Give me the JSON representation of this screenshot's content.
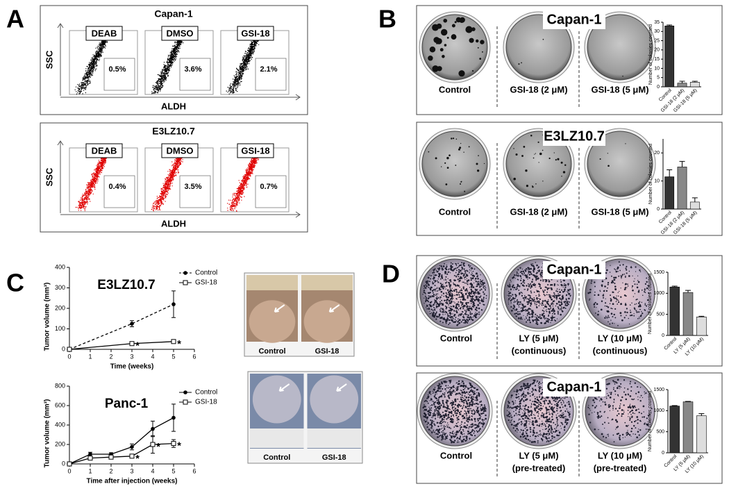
{
  "panel_a": {
    "letter": "A",
    "plots": [
      {
        "title": "Capan-1",
        "ylabel": "SSC",
        "xlabel": "ALDH",
        "color": "#000000",
        "gates": [
          {
            "label": "DEAB",
            "percent": "0.5%"
          },
          {
            "label": "DMSO",
            "percent": "3.6%"
          },
          {
            "label": "GSI-18",
            "percent": "2.1%"
          }
        ]
      },
      {
        "title": "E3LZ10.7",
        "ylabel": "SSC",
        "xlabel": "ALDH",
        "color": "#e00000",
        "gates": [
          {
            "label": "DEAB",
            "percent": "0.4%"
          },
          {
            "label": "DMSO",
            "percent": "3.5%"
          },
          {
            "label": "GSI-18",
            "percent": "0.7%"
          }
        ]
      }
    ]
  },
  "panel_b": {
    "letter": "B",
    "rows": [
      {
        "title": "Capan-1",
        "plates": [
          "Control",
          "GSI-18 (2 μM)",
          "GSI-18 (5 μM)"
        ]
      },
      {
        "title": "E3LZ10.7",
        "plates": [
          "Control",
          "GSI-18 (2 μM)",
          "GSI-18 (5 μM)"
        ]
      }
    ]
  },
  "panel_c": {
    "letter": "C",
    "photo_labels": [
      [
        "Control",
        "GSI-18"
      ],
      [
        "Control",
        "GSI-18"
      ]
    ]
  },
  "panel_d": {
    "letter": "D",
    "rows": [
      {
        "title": "Capan-1",
        "plates": [
          [
            "Control"
          ],
          [
            "LY (5 μM)",
            "(continuous)"
          ],
          [
            "LY (10 μM)",
            "(continuous)"
          ]
        ]
      },
      {
        "title": "Capan-1",
        "plates": [
          [
            "Control"
          ],
          [
            "LY (5 μM)",
            "(pre-treated)"
          ],
          [
            "LY (10 μM)",
            "(pre-treated)"
          ]
        ]
      }
    ]
  },
  "chart_data": [
    {
      "type": "bar",
      "ylabel": "Number of colonies counted",
      "categories": [
        "Control",
        "GSI-18 (2 μM)",
        "GSI-18 (5 μM)"
      ],
      "values": [
        33,
        2,
        2.5
      ],
      "errors": [
        0.5,
        1,
        0.5
      ],
      "colors": [
        "#333333",
        "#888888",
        "#dddddd"
      ],
      "ylim": [
        0,
        35
      ],
      "yticks": [
        0,
        5,
        10,
        15,
        20,
        25,
        30,
        35
      ]
    },
    {
      "type": "bar",
      "ylabel": "Number of colonies counted",
      "categories": [
        "Control",
        "GSI-18 (2 μM)",
        "GSI-18 (5 μM)"
      ],
      "values": [
        11.5,
        15,
        2.5
      ],
      "errors": [
        2.5,
        2,
        1.5
      ],
      "colors": [
        "#333333",
        "#888888",
        "#dddddd"
      ],
      "ylim": [
        0,
        25
      ],
      "yticks": [
        0,
        10,
        20
      ]
    },
    {
      "type": "line",
      "annotation": "E3LZ10.7",
      "xlabel": "Time (weeks)",
      "ylabel": "Tumor volume (mm³)",
      "x": [
        0,
        3,
        5
      ],
      "xlim": [
        0,
        6
      ],
      "xticks": [
        0,
        1,
        2,
        3,
        4,
        5,
        6
      ],
      "ylim": [
        0,
        400
      ],
      "yticks": [
        0,
        100,
        200,
        300,
        400
      ],
      "series": [
        {
          "name": "Control",
          "color": "#000000",
          "marker": "circle",
          "dashed": true,
          "values": [
            0,
            125,
            220
          ],
          "errors": [
            null,
            15,
            65
          ],
          "significance": [
            null,
            null,
            null
          ]
        },
        {
          "name": "GSI-18",
          "color": "#000000",
          "marker": "square",
          "dashed": false,
          "values": [
            0,
            28,
            38
          ],
          "errors": [
            null,
            4,
            8
          ],
          "significance": [
            null,
            "*",
            "*"
          ]
        }
      ]
    },
    {
      "type": "line",
      "annotation": "Panc-1",
      "xlabel": "Time after injection (weeks)",
      "ylabel": "Tumor volume (mm³)",
      "x": [
        0,
        1,
        2,
        3,
        4,
        5
      ],
      "xlim": [
        0,
        6
      ],
      "xticks": [
        0,
        1,
        2,
        3,
        4,
        5,
        6
      ],
      "ylim": [
        0,
        800
      ],
      "yticks": [
        0,
        200,
        400,
        600,
        800
      ],
      "series": [
        {
          "name": "Control",
          "color": "#000000",
          "marker": "circle",
          "dashed": false,
          "values": [
            0,
            100,
            100,
            175,
            360,
            475
          ],
          "errors": [
            null,
            20,
            15,
            30,
            80,
            140
          ],
          "significance": [
            null,
            null,
            null,
            null,
            null,
            null
          ]
        },
        {
          "name": "GSI-18",
          "color": "#000000",
          "marker": "square",
          "dashed": false,
          "values": [
            0,
            60,
            70,
            80,
            200,
            210
          ],
          "errors": [
            null,
            10,
            10,
            10,
            90,
            40
          ],
          "significance": [
            null,
            null,
            null,
            "*",
            "*",
            "*"
          ]
        }
      ]
    },
    {
      "type": "bar",
      "ylabel": "Number of colonies counted",
      "categories": [
        "Control",
        "LY (5 μM)",
        "LY (10 μM)"
      ],
      "values": [
        1150,
        1020,
        440
      ],
      "errors": [
        20,
        50,
        15
      ],
      "colors": [
        "#333333",
        "#888888",
        "#dddddd"
      ],
      "ylim": [
        0,
        1500
      ],
      "yticks": [
        0,
        500,
        1000,
        1500
      ]
    },
    {
      "type": "bar",
      "ylabel": "Number of colonies counted",
      "categories": [
        "Control",
        "LY (5 μM)",
        "LY (10 μM)"
      ],
      "values": [
        1110,
        1210,
        880
      ],
      "errors": [
        10,
        10,
        50
      ],
      "colors": [
        "#333333",
        "#888888",
        "#dddddd"
      ],
      "ylim": [
        0,
        1500
      ],
      "yticks": [
        0,
        500,
        1000,
        1500
      ]
    }
  ]
}
